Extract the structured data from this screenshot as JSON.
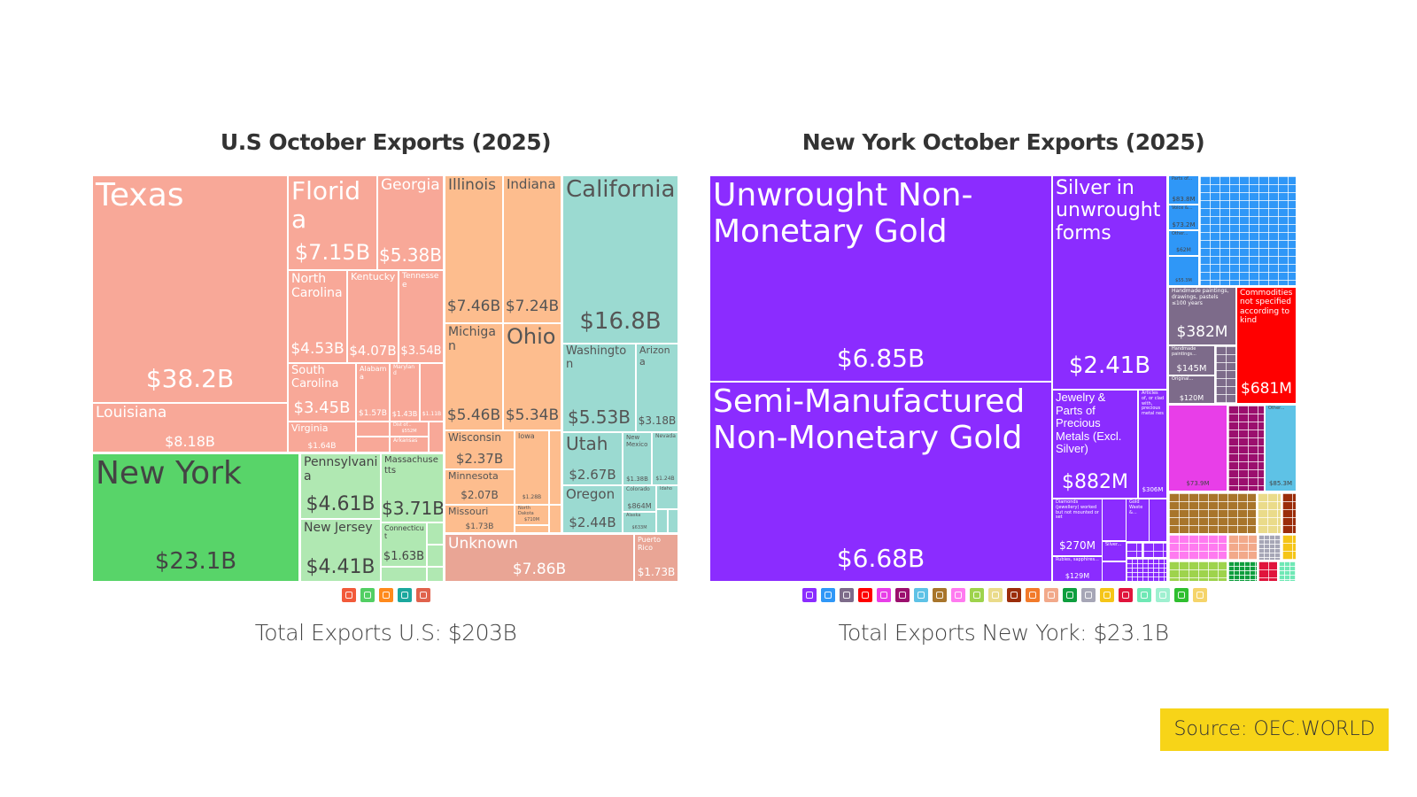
{
  "us_treemap": {
    "title": "U.S October Exports (2025)",
    "total": "Total Exports U.S: $203B",
    "colors": {
      "se": "#f8a898",
      "mw": "#fdbd8e",
      "w": "#9bdad1",
      "ne": "#b0e8b2",
      "ny": "#58d469",
      "unk": "#e9a595"
    },
    "tiles": [
      {
        "label": "Texas",
        "value": "$38.2B",
        "group": "se"
      },
      {
        "label": "Louisiana",
        "value": "$8.18B",
        "group": "se"
      },
      {
        "label": "Florida",
        "value": "$7.15B",
        "group": "se"
      },
      {
        "label": "Georgia",
        "value": "$5.38B",
        "group": "se"
      },
      {
        "label": "North Carolina",
        "value": "$4.53B",
        "group": "se"
      },
      {
        "label": "Kentucky",
        "value": "$4.07B",
        "group": "se"
      },
      {
        "label": "Tennessee",
        "value": "$3.54B",
        "group": "se"
      },
      {
        "label": "South Carolina",
        "value": "$3.45B",
        "group": "se"
      },
      {
        "label": "Alabama",
        "value": "$1.57B",
        "group": "se"
      },
      {
        "label": "Maryland",
        "value": "$1.43B",
        "group": "se"
      },
      {
        "label": "",
        "value": "$1.11B",
        "group": "se"
      },
      {
        "label": "Virginia",
        "value": "$1.64B",
        "group": "se"
      },
      {
        "label": "Dist of...",
        "value": "$552M",
        "group": "se"
      },
      {
        "label": "Arkansas",
        "value": "",
        "group": "se"
      },
      {
        "label": "New York",
        "value": "$23.1B",
        "group": "ny"
      },
      {
        "label": "Pennsylvania",
        "value": "$4.61B",
        "group": "ne"
      },
      {
        "label": "New Jersey",
        "value": "$4.41B",
        "group": "ne"
      },
      {
        "label": "Massachusetts",
        "value": "$3.71B",
        "group": "ne"
      },
      {
        "label": "Connecticut",
        "value": "$1.63B",
        "group": "ne"
      },
      {
        "label": "Illinois",
        "value": "$7.46B",
        "group": "mw"
      },
      {
        "label": "Indiana",
        "value": "$7.24B",
        "group": "mw"
      },
      {
        "label": "Michigan",
        "value": "$5.46B",
        "group": "mw"
      },
      {
        "label": "Ohio",
        "value": "$5.34B",
        "group": "mw"
      },
      {
        "label": "Wisconsin",
        "value": "$2.37B",
        "group": "mw"
      },
      {
        "label": "Minnesota",
        "value": "$2.07B",
        "group": "mw"
      },
      {
        "label": "Missouri",
        "value": "$1.73B",
        "group": "mw"
      },
      {
        "label": "Iowa",
        "value": "$1.28B",
        "group": "mw"
      },
      {
        "label": "North Dakota",
        "value": "$710M",
        "group": "mw"
      },
      {
        "label": "California",
        "value": "$16.8B",
        "group": "w"
      },
      {
        "label": "Washington",
        "value": "$5.53B",
        "group": "w"
      },
      {
        "label": "Arizona",
        "value": "$3.18B",
        "group": "w"
      },
      {
        "label": "Utah",
        "value": "$2.67B",
        "group": "w"
      },
      {
        "label": "New Mexico",
        "value": "$1.38B",
        "group": "w"
      },
      {
        "label": "Nevada",
        "value": "$1.24B",
        "group": "w"
      },
      {
        "label": "Oregon",
        "value": "$2.44B",
        "group": "w"
      },
      {
        "label": "Colorado",
        "value": "$864M",
        "group": "w"
      },
      {
        "label": "Alaska",
        "value": "$633M",
        "group": "w"
      },
      {
        "label": "Idaho",
        "value": "",
        "group": "w"
      },
      {
        "label": "Unknown",
        "value": "$7.86B",
        "group": "unk"
      },
      {
        "label": "Puerto Rico",
        "value": "$1.73B",
        "group": "unk"
      }
    ],
    "legend": [
      {
        "icon": "region-icon",
        "color": "#f25a3a"
      },
      {
        "icon": "region-icon",
        "color": "#52cf63"
      },
      {
        "icon": "region-icon",
        "color": "#ff8a1c"
      },
      {
        "icon": "region-icon",
        "color": "#1ba89e"
      },
      {
        "icon": "region-icon",
        "color": "#e0624c"
      }
    ]
  },
  "ny_treemap": {
    "title": "New York October Exports (2025)",
    "total": "Total Exports New York: $23.1B",
    "colors": {
      "metal": "#8b2cff",
      "mach": "#2f97f7",
      "art": "#7d6b8a",
      "misc": "#ff0000",
      "pink": "#e83ee8",
      "mag": "#9b0f6e",
      "lb": "#5ec2e6"
    },
    "tiles": [
      {
        "label": "Unwrought Non-Monetary Gold",
        "value": "$6.85B",
        "group": "metal"
      },
      {
        "label": "Semi-Manufactured Non-Monetary Gold",
        "value": "$6.68B",
        "group": "metal"
      },
      {
        "label": "Silver in unwrought forms",
        "value": "$2.41B",
        "group": "metal"
      },
      {
        "label": "Jewelry & Parts of Precious Metals (Excl. Silver)",
        "value": "$882M",
        "group": "metal"
      },
      {
        "label": "Articles of, or clad with, precious metal nes",
        "value": "$306M",
        "group": "metal"
      },
      {
        "label": "Diamonds (jewellery) worked but not mounted or set",
        "value": "$270M",
        "group": "metal"
      },
      {
        "label": "Rubies, sapphires...",
        "value": "$129M",
        "group": "metal"
      },
      {
        "label": "Gold Waste &...",
        "value": "",
        "group": "metal"
      },
      {
        "label": "Silver...",
        "value": "",
        "group": "metal"
      },
      {
        "label": "Parts of...",
        "value": "$83.8M",
        "group": "mach"
      },
      {
        "label": "Voice &...",
        "value": "$73.2M",
        "group": "mach"
      },
      {
        "label": "Other...",
        "value": "$62M",
        "group": "mach"
      },
      {
        "label": "",
        "value": "$55.3M",
        "group": "mach"
      },
      {
        "label": "Handmade paintings, drawings, pastels ≤100 years",
        "value": "$382M",
        "group": "art"
      },
      {
        "label": "Handmade paintings...",
        "value": "$145M",
        "group": "art"
      },
      {
        "label": "Original...",
        "value": "$120M",
        "group": "art"
      },
      {
        "label": "Commodities not specified according to kind",
        "value": "$681M",
        "group": "misc"
      },
      {
        "label": "",
        "value": "$73.9M",
        "group": "pink"
      },
      {
        "label": "Other...",
        "value": "$85.3M",
        "group": "lb"
      }
    ],
    "legend": [
      {
        "icon": "gem-icon",
        "color": "#8b2cff"
      },
      {
        "icon": "gear-icon",
        "color": "#2f97f7"
      },
      {
        "icon": "painting-icon",
        "color": "#7d6b8a"
      },
      {
        "icon": "box-icon",
        "color": "#ff0000"
      },
      {
        "icon": "flask-icon",
        "color": "#e83ee8"
      },
      {
        "icon": "gauge-icon",
        "color": "#9b0f6e"
      },
      {
        "icon": "textile-icon",
        "color": "#5ec2e6"
      },
      {
        "icon": "wood-icon",
        "color": "#a8752b"
      },
      {
        "icon": "paper-icon",
        "color": "#ff7af0"
      },
      {
        "icon": "plant-icon",
        "color": "#9ed34c"
      },
      {
        "icon": "food-icon",
        "color": "#eadb8a"
      },
      {
        "icon": "tool-icon",
        "color": "#9b2d0a"
      },
      {
        "icon": "chemical-icon",
        "color": "#f27a2a"
      },
      {
        "icon": "leather-icon",
        "color": "#f2a98a"
      },
      {
        "icon": "garment-icon",
        "color": "#0e9e3e"
      },
      {
        "icon": "stone-icon",
        "color": "#a6a6b6"
      },
      {
        "icon": "animal-icon",
        "color": "#f5c518"
      },
      {
        "icon": "vehicle-icon",
        "color": "#e0143c"
      },
      {
        "icon": "shoe-icon",
        "color": "#6fe8b5"
      },
      {
        "icon": "weapon-icon",
        "color": "#9ff0d0"
      },
      {
        "icon": "mineral-icon",
        "color": "#2fbf2f"
      },
      {
        "icon": "oil-icon",
        "color": "#f5d46a"
      }
    ]
  },
  "source": "Source: OEC.WORLD"
}
